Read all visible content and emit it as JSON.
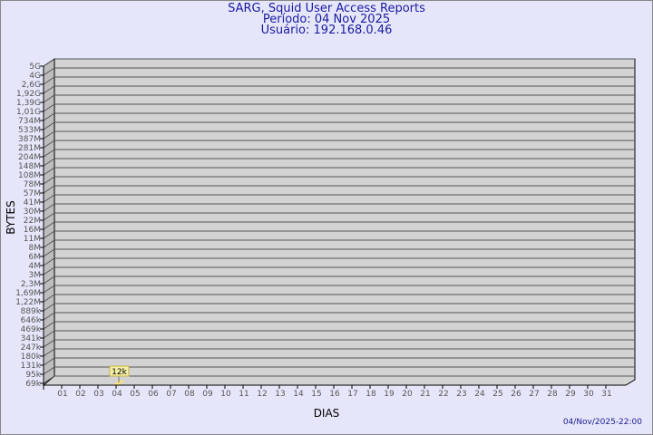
{
  "header": {
    "title": "SARG, Squid User Access Reports",
    "period": "Período: 04 Nov 2025",
    "user": "Usuário: 192.168.0.46"
  },
  "footer": {
    "timestamp": "04/Nov/2025-22:00"
  },
  "chart_data": {
    "type": "bar",
    "title": "SARG, Squid User Access Reports",
    "xlabel": "DIAS",
    "ylabel": "BYTES",
    "y_scale": "log",
    "grid": true,
    "categories": [
      "01",
      "02",
      "03",
      "04",
      "05",
      "06",
      "07",
      "08",
      "09",
      "10",
      "11",
      "12",
      "13",
      "14",
      "15",
      "16",
      "17",
      "18",
      "19",
      "20",
      "21",
      "22",
      "23",
      "24",
      "25",
      "26",
      "27",
      "28",
      "29",
      "30",
      "31"
    ],
    "y_ticks": [
      "5G",
      "4G",
      "2,6G",
      "1,92G",
      "1,39G",
      "1,01G",
      "734M",
      "533M",
      "387M",
      "281M",
      "204M",
      "148M",
      "108M",
      "78M",
      "57M",
      "41M",
      "30M",
      "22M",
      "16M",
      "11M",
      "8M",
      "6M",
      "4M",
      "3M",
      "2,3M",
      "1,69M",
      "1,22M",
      "889k",
      "646k",
      "469k",
      "341k",
      "247k",
      "180k",
      "131k",
      "95k",
      "69k"
    ],
    "bars": [
      {
        "category": "04",
        "value": 12000,
        "label": "12k"
      }
    ],
    "colors": {
      "bar": "#f5e08a",
      "wall": "#d3d3d3",
      "label_bg": "#f5f0a8",
      "title": "#1a1aa0"
    }
  }
}
